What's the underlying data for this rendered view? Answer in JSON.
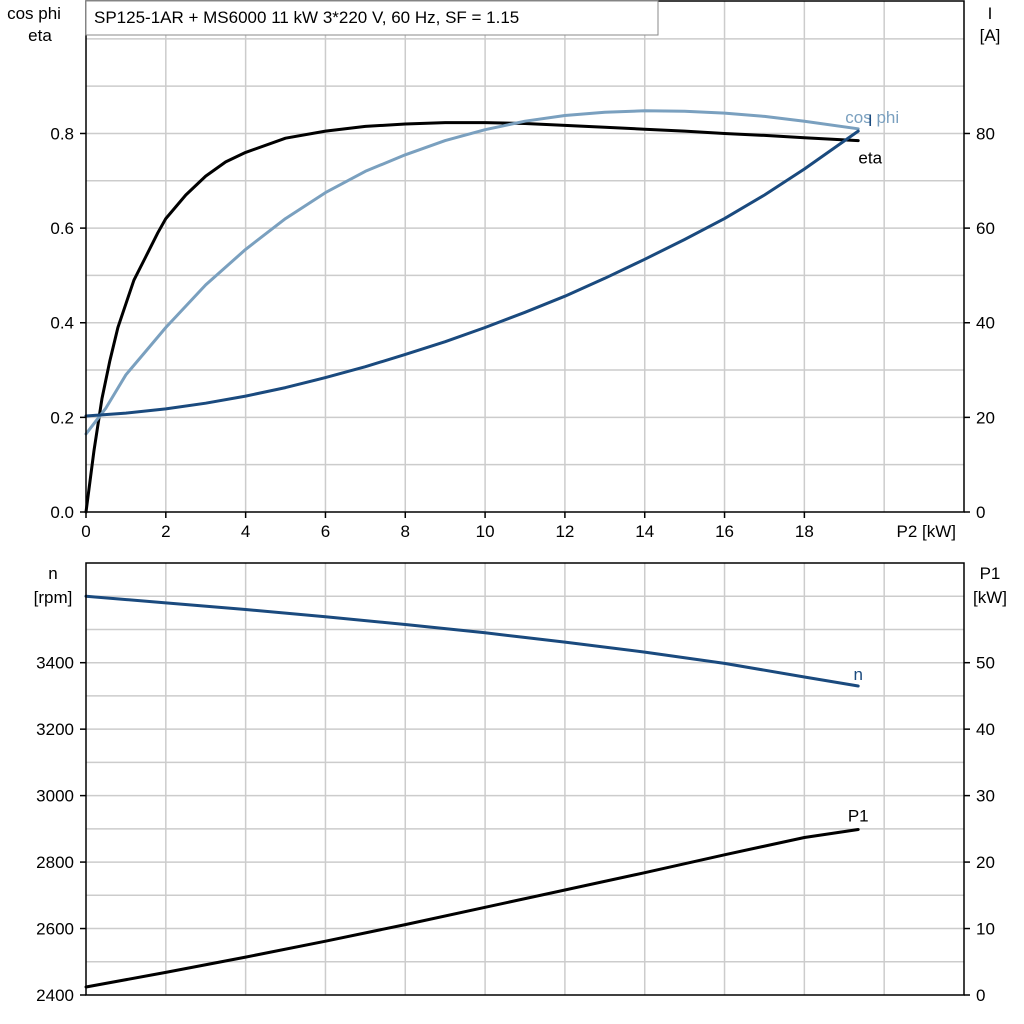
{
  "title": "SP125-1AR + MS6000   11 kW   3*220 V, 60 Hz, SF = 1.15",
  "colors": {
    "black": "#000000",
    "dark_blue": "#1a4a7e",
    "light_blue": "#7aa0bf",
    "grid": "#cccccc"
  },
  "chart_data": [
    {
      "type": "line",
      "xlabel": "P2 [kW]",
      "xlim": [
        0,
        22
      ],
      "x_ticks": [
        "0",
        "2",
        "4",
        "6",
        "8",
        "10",
        "12",
        "14",
        "16",
        "18"
      ],
      "ylabel_left": [
        "cos phi",
        "eta"
      ],
      "ylim_left": [
        0,
        1.08
      ],
      "y_ticks_left": [
        "0.0",
        "0.2",
        "0.4",
        "0.6",
        "0.8"
      ],
      "ylabel_right": [
        "I",
        "[A]"
      ],
      "ylim_right": [
        0,
        108
      ],
      "y_ticks_right": [
        "0",
        "20",
        "40",
        "60",
        "80"
      ],
      "grid": true,
      "series": [
        {
          "name": "eta",
          "axis": "left",
          "color": "#000000",
          "x": [
            0,
            0.2,
            0.4,
            0.6,
            0.8,
            1,
            1.2,
            1.5,
            1.8,
            2,
            2.5,
            3,
            3.5,
            4,
            5,
            6,
            7,
            8,
            9,
            10,
            11,
            12,
            13,
            14,
            15,
            16,
            17,
            18,
            19.35
          ],
          "y": [
            0,
            0.13,
            0.24,
            0.32,
            0.39,
            0.44,
            0.49,
            0.54,
            0.59,
            0.62,
            0.67,
            0.71,
            0.74,
            0.76,
            0.79,
            0.805,
            0.815,
            0.82,
            0.823,
            0.823,
            0.821,
            0.817,
            0.813,
            0.809,
            0.805,
            0.8,
            0.796,
            0.791,
            0.785
          ]
        },
        {
          "name": "cos phi",
          "axis": "left",
          "color": "#7aa0bf",
          "x": [
            0,
            0.5,
            1,
            1.5,
            2,
            3,
            4,
            5,
            6,
            7,
            8,
            9,
            10,
            11,
            12,
            13,
            14,
            15,
            16,
            17,
            18,
            19.35
          ],
          "y": [
            0.165,
            0.22,
            0.29,
            0.34,
            0.39,
            0.48,
            0.555,
            0.62,
            0.675,
            0.72,
            0.755,
            0.785,
            0.808,
            0.826,
            0.838,
            0.845,
            0.848,
            0.847,
            0.843,
            0.836,
            0.826,
            0.81
          ]
        },
        {
          "name": "I",
          "axis": "right",
          "color": "#1a4a7e",
          "x": [
            0,
            1,
            2,
            3,
            4,
            5,
            6,
            7,
            8,
            9,
            10,
            11,
            12,
            13,
            14,
            15,
            16,
            17,
            18,
            19.35
          ],
          "y": [
            20.3,
            20.9,
            21.8,
            23,
            24.5,
            26.3,
            28.4,
            30.7,
            33.3,
            36,
            39,
            42.2,
            45.6,
            49.4,
            53.4,
            57.6,
            62,
            67,
            72.5,
            80.5
          ]
        }
      ]
    },
    {
      "type": "line",
      "xlim": [
        0,
        22
      ],
      "ylabel_left": [
        "n",
        "[rpm]"
      ],
      "ylim_left": [
        2400,
        3700
      ],
      "y_ticks_left": [
        "2400",
        "2600",
        "2800",
        "3000",
        "3200",
        "3400"
      ],
      "ylabel_right": [
        "P1",
        "[kW]"
      ],
      "ylim_right": [
        0,
        65
      ],
      "y_ticks_right": [
        "0",
        "10",
        "20",
        "30",
        "40",
        "50"
      ],
      "grid": true,
      "series": [
        {
          "name": "n",
          "axis": "left",
          "color": "#1a4a7e",
          "x": [
            0,
            2,
            4,
            6,
            8,
            10,
            12,
            14,
            16,
            18,
            19.35
          ],
          "y": [
            3600,
            3580,
            3560,
            3538,
            3515,
            3490,
            3462,
            3432,
            3398,
            3357,
            3330
          ]
        },
        {
          "name": "P1",
          "axis": "right",
          "color": "#000000",
          "x": [
            0,
            2,
            4,
            6,
            8,
            10,
            12,
            14,
            16,
            18,
            19.35
          ],
          "y": [
            1.2,
            3.4,
            5.7,
            8.1,
            10.6,
            13.2,
            15.8,
            18.4,
            21.1,
            23.7,
            24.9
          ]
        }
      ]
    }
  ]
}
